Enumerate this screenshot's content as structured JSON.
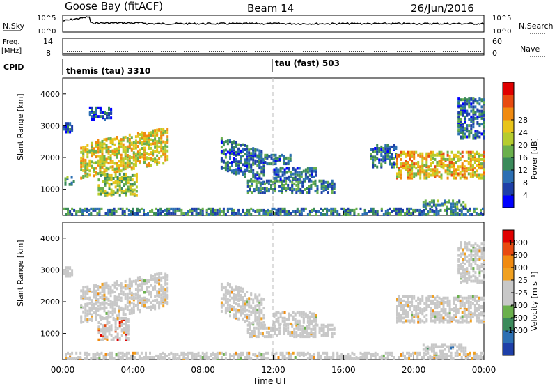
{
  "header": {
    "station": "Goose Bay (fitACF)",
    "beam": "Beam 14",
    "date": "26/Jun/2016"
  },
  "status_panels": {
    "nsky_label": "N.Sky",
    "nsky_tick_high": "10^5",
    "nsky_tick_low": "10^0",
    "nsearch_label": "N.Search",
    "nsearch_tick_high": "10^5",
    "nsearch_tick_low": "10^0",
    "freq_label_1": "Freq.",
    "freq_label_2": "[MHz]",
    "freq_tick_high": "14",
    "freq_tick_low": "8",
    "nave_label": "Nave",
    "nave_tick_high": "60",
    "nave_tick_low": "0",
    "cpid_label": "CPID",
    "cpid_1": "themis (tau) 3310",
    "cpid_2": "tau (fast) 503"
  },
  "chart_data": [
    {
      "type": "heatmap",
      "parameter": "Power",
      "ylabel": "Slant Range [km]",
      "xlabel": "Time UT",
      "xlim": [
        "00:00",
        "24:00"
      ],
      "ylim": [
        180,
        4500
      ],
      "x_ticks": [
        "00:00",
        "04:00",
        "08:00",
        "12:00",
        "16:00",
        "20:00",
        "00:00"
      ],
      "y_ticks": [
        1000,
        2000,
        3000,
        4000
      ],
      "colorbar_label": "Power [dB]",
      "colorbar_ticks": [
        4,
        8,
        12,
        16,
        20,
        24,
        28
      ],
      "colorbar_colors": [
        "#0000ff",
        "#1e3fa8",
        "#2c6fb3",
        "#3a8a5a",
        "#6ab04c",
        "#b5cc2e",
        "#e8c41a",
        "#f08a10",
        "#e84a10",
        "#e00000"
      ],
      "regions": [
        {
          "t0": 0.0,
          "t1": 0.5,
          "r0": 2800,
          "r1": 3100,
          "level": 0.2
        },
        {
          "t0": 0.1,
          "t1": 0.6,
          "r0": 1150,
          "r1": 1400,
          "level": 0.3
        },
        {
          "t0": 1.0,
          "t1": 6.0,
          "r0": 1600,
          "r1": 2700,
          "level": 0.55,
          "slope": 1
        },
        {
          "t0": 2.0,
          "t1": 4.2,
          "r0": 800,
          "r1": 1500,
          "level": 0.45
        },
        {
          "t0": 1.5,
          "t1": 2.8,
          "r0": 3200,
          "r1": 3600,
          "level": 0.15
        },
        {
          "t0": 9.0,
          "t1": 11.5,
          "r0": 1400,
          "r1": 2400,
          "level": 0.2,
          "slope": -1
        },
        {
          "t0": 10.5,
          "t1": 15.5,
          "r0": 900,
          "r1": 1300,
          "level": 0.25
        },
        {
          "t0": 12.0,
          "t1": 14.5,
          "r0": 1300,
          "r1": 1700,
          "level": 0.2
        },
        {
          "t0": 11.0,
          "t1": 13.0,
          "r0": 1800,
          "r1": 2100,
          "level": 0.2
        },
        {
          "t0": 17.5,
          "t1": 19.0,
          "r0": 1700,
          "r1": 2400,
          "level": 0.2
        },
        {
          "t0": 19.0,
          "t1": 24.0,
          "r0": 1350,
          "r1": 2200,
          "level": 0.6
        },
        {
          "t0": 20.5,
          "t1": 23.0,
          "r0": 450,
          "r1": 650,
          "level": 0.3
        },
        {
          "t0": 22.5,
          "t1": 24.0,
          "r0": 2600,
          "r1": 3900,
          "level": 0.2
        },
        {
          "t0": 0.0,
          "t1": 24.0,
          "r0": 200,
          "r1": 420,
          "level": 0.25
        }
      ]
    },
    {
      "type": "heatmap",
      "parameter": "Velocity",
      "ylabel": "Slant Range [km]",
      "xlabel": "Time UT",
      "xlim": [
        "00:00",
        "24:00"
      ],
      "ylim": [
        180,
        4500
      ],
      "x_ticks": [
        "00:00",
        "04:00",
        "08:00",
        "12:00",
        "16:00",
        "20:00",
        "00:00"
      ],
      "y_ticks": [
        1000,
        2000,
        3000,
        4000
      ],
      "colorbar_label": "Velocity [m s⁻¹]",
      "colorbar_ticks": [
        "1000",
        "500",
        "100",
        "25",
        "-25",
        "-100",
        "-500",
        "-1000"
      ],
      "colorbar_colors": [
        "#1e3fa8",
        "#2c6fb3",
        "#3a8a5a",
        "#6ab04c",
        "#c8c8c8",
        "#c8c8c8",
        "#f0a020",
        "#f08a10",
        "#e84a10",
        "#e00000"
      ],
      "regions": [
        {
          "t0": 0.0,
          "t1": 0.5,
          "r0": 2800,
          "r1": 3100,
          "level": 0.5
        },
        {
          "t0": 1.0,
          "t1": 6.0,
          "r0": 1600,
          "r1": 2700,
          "level": 0.5,
          "slope": 1
        },
        {
          "t0": 2.0,
          "t1": 3.8,
          "r0": 800,
          "r1": 1500,
          "level": 0.75
        },
        {
          "t0": 9.0,
          "t1": 11.5,
          "r0": 1400,
          "r1": 2400,
          "level": 0.5,
          "slope": -1
        },
        {
          "t0": 10.5,
          "t1": 15.5,
          "r0": 900,
          "r1": 1300,
          "level": 0.5
        },
        {
          "t0": 12.0,
          "t1": 14.5,
          "r0": 1300,
          "r1": 1700,
          "level": 0.5
        },
        {
          "t0": 19.0,
          "t1": 24.0,
          "r0": 1350,
          "r1": 2200,
          "level": 0.5
        },
        {
          "t0": 20.5,
          "t1": 23.0,
          "r0": 450,
          "r1": 650,
          "level": 0.3
        },
        {
          "t0": 22.5,
          "t1": 24.0,
          "r0": 2600,
          "r1": 3900,
          "level": 0.5
        },
        {
          "t0": 0.0,
          "t1": 24.0,
          "r0": 200,
          "r1": 420,
          "level": 0.5
        }
      ]
    }
  ]
}
